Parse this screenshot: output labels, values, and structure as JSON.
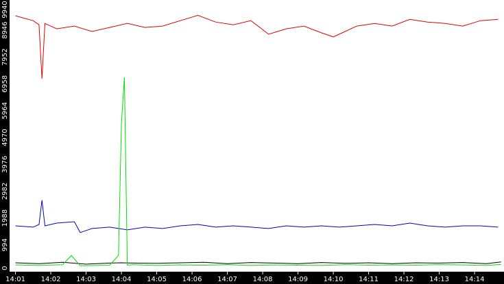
{
  "chart_data": {
    "type": "line",
    "title": "",
    "xlabel": "",
    "ylabel": "",
    "grid": false,
    "legend": "none",
    "x_range": [
      "14:00:50",
      "14:14:50"
    ],
    "ylim": [
      0,
      9940
    ],
    "y_ticks": [
      "0",
      "994",
      "1988",
      "2982",
      "3976",
      "4970",
      "5964",
      "6958",
      "7952",
      "8946",
      "9940"
    ],
    "x_ticks": [
      "14:01",
      "14:02",
      "14:03",
      "14:04",
      "14:05",
      "14:06",
      "14:07",
      "14:08",
      "14:09",
      "14:10",
      "14:11",
      "14:12",
      "14:13",
      "14:14"
    ],
    "colors": {
      "background": "#ffffff",
      "axis_band": "#000000",
      "tick_text": "#ffffff"
    },
    "series": [
      {
        "color": "#e00000",
        "x": [
          "14:01:00",
          "14:01:30",
          "14:01:40",
          "14:01:45",
          "14:01:50",
          "14:02:10",
          "14:02:40",
          "14:03:10",
          "14:03:40",
          "14:04:10",
          "14:04:40",
          "14:05:10",
          "14:05:40",
          "14:06:10",
          "14:06:40",
          "14:07:10",
          "14:07:40",
          "14:08:10",
          "14:08:40",
          "14:09:10",
          "14:09:40",
          "14:10:00",
          "14:10:20",
          "14:10:40",
          "14:11:10",
          "14:11:40",
          "14:12:10",
          "14:12:40",
          "14:13:10",
          "14:13:40",
          "14:14:10",
          "14:14:40"
        ],
        "values": [
          9480,
          9300,
          9150,
          7150,
          9200,
          9000,
          9100,
          8900,
          9050,
          9200,
          9050,
          9100,
          9300,
          9500,
          9250,
          9150,
          9300,
          8800,
          9000,
          9100,
          8850,
          8700,
          8900,
          9100,
          9200,
          9100,
          9350,
          9250,
          9200,
          9100,
          9300,
          9350
        ]
      },
      {
        "color": "#0000c0",
        "x": [
          "14:01:00",
          "14:01:30",
          "14:01:40",
          "14:01:45",
          "14:01:50",
          "14:02:10",
          "14:02:40",
          "14:02:50",
          "14:03:10",
          "14:03:40",
          "14:04:10",
          "14:04:40",
          "14:05:10",
          "14:05:40",
          "14:06:10",
          "14:06:40",
          "14:07:10",
          "14:07:40",
          "14:08:10",
          "14:08:40",
          "14:09:10",
          "14:09:40",
          "14:10:10",
          "14:10:40",
          "14:11:10",
          "14:11:40",
          "14:12:10",
          "14:12:40",
          "14:13:10",
          "14:13:40",
          "14:14:10",
          "14:14:40"
        ],
        "values": [
          1700,
          1650,
          1750,
          2650,
          1700,
          1800,
          1850,
          1450,
          1600,
          1650,
          1550,
          1650,
          1600,
          1700,
          1750,
          1650,
          1700,
          1650,
          1600,
          1700,
          1650,
          1700,
          1650,
          1700,
          1750,
          1700,
          1800,
          1700,
          1650,
          1700,
          1700,
          1650
        ]
      },
      {
        "color": "#000000",
        "x": [
          "14:01:00",
          "14:01:40",
          "14:02:20",
          "14:03:00",
          "14:03:40",
          "14:04:00",
          "14:04:20",
          "14:05:00",
          "14:05:40",
          "14:06:20",
          "14:07:00",
          "14:07:40",
          "14:08:20",
          "14:09:00",
          "14:09:40",
          "14:10:20",
          "14:11:00",
          "14:11:40",
          "14:12:20",
          "14:13:00",
          "14:13:40",
          "14:14:20",
          "14:14:45"
        ],
        "values": [
          330,
          300,
          350,
          280,
          320,
          330,
          320,
          310,
          330,
          350,
          300,
          340,
          320,
          300,
          340,
          310,
          330,
          300,
          330,
          320,
          340,
          300,
          360
        ]
      },
      {
        "color": "#00e000",
        "x": [
          "14:01:00",
          "14:01:40",
          "14:02:20",
          "14:02:35",
          "14:02:50",
          "14:03:40",
          "14:03:55",
          "14:04:00",
          "14:04:05",
          "14:04:10",
          "14:04:20",
          "14:05:00",
          "14:05:40",
          "14:06:20",
          "14:07:00",
          "14:07:40",
          "14:08:20",
          "14:09:00",
          "14:09:40",
          "14:10:20",
          "14:11:00",
          "14:11:40",
          "14:12:20",
          "14:13:00",
          "14:13:40",
          "14:14:20",
          "14:14:45"
        ],
        "values": [
          250,
          230,
          260,
          600,
          220,
          240,
          600,
          5500,
          7200,
          240,
          260,
          230,
          250,
          240,
          260,
          230,
          250,
          240,
          230,
          260,
          240,
          250,
          240,
          260,
          250,
          230,
          270
        ]
      }
    ]
  }
}
